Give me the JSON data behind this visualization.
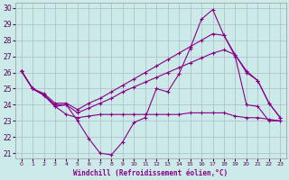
{
  "xlabel": "Windchill (Refroidissement éolien,°C)",
  "xlim": [
    -0.5,
    23.5
  ],
  "ylim": [
    20.7,
    30.3
  ],
  "xticks": [
    0,
    1,
    2,
    3,
    4,
    5,
    6,
    7,
    8,
    9,
    10,
    11,
    12,
    13,
    14,
    15,
    16,
    17,
    18,
    19,
    20,
    21,
    22,
    23
  ],
  "yticks": [
    21,
    22,
    23,
    24,
    25,
    26,
    27,
    28,
    29,
    30
  ],
  "bg_color": "#cceae8",
  "line_color": "#880088",
  "grid_color": "#aabbcc",
  "lines": [
    {
      "x": [
        0,
        1,
        2,
        3,
        4,
        5,
        6,
        7,
        8,
        9,
        10,
        11,
        12,
        13,
        14,
        15,
        16,
        17,
        18,
        19,
        20,
        21,
        22,
        23
      ],
      "y": [
        26.1,
        25.0,
        24.6,
        23.9,
        24.0,
        23.0,
        21.9,
        21.0,
        20.9,
        21.7,
        22.9,
        23.2,
        25.0,
        24.8,
        25.9,
        27.5,
        29.3,
        29.9,
        28.3,
        27.0,
        24.0,
        23.9,
        23.0,
        23.0
      ]
    },
    {
      "x": [
        0,
        1,
        2,
        3,
        4,
        5,
        6,
        7,
        8,
        9,
        10,
        11,
        12,
        13,
        14,
        15,
        16,
        17,
        18,
        19,
        20,
        21,
        22,
        23
      ],
      "y": [
        26.1,
        25.0,
        24.6,
        24.0,
        24.0,
        23.5,
        23.8,
        24.1,
        24.4,
        24.8,
        25.1,
        25.4,
        25.7,
        26.0,
        26.3,
        26.6,
        26.9,
        27.2,
        27.4,
        27.1,
        26.0,
        25.5,
        24.1,
        23.2
      ]
    },
    {
      "x": [
        0,
        1,
        2,
        3,
        4,
        5,
        6,
        7,
        8,
        9,
        10,
        11,
        12,
        13,
        14,
        15,
        16,
        17,
        18,
        19,
        20,
        21,
        22,
        23
      ],
      "y": [
        26.1,
        25.0,
        24.7,
        24.1,
        24.1,
        23.7,
        24.1,
        24.4,
        24.8,
        25.2,
        25.6,
        26.0,
        26.4,
        26.8,
        27.2,
        27.6,
        28.0,
        28.4,
        28.3,
        27.1,
        26.1,
        25.5,
        24.1,
        23.2
      ]
    },
    {
      "x": [
        0,
        1,
        2,
        3,
        4,
        5,
        6,
        7,
        8,
        9,
        10,
        11,
        12,
        13,
        14,
        15,
        16,
        17,
        18,
        19,
        20,
        21,
        22,
        23
      ],
      "y": [
        26.1,
        25.0,
        24.6,
        23.9,
        23.4,
        23.2,
        23.3,
        23.4,
        23.4,
        23.4,
        23.4,
        23.4,
        23.4,
        23.4,
        23.4,
        23.5,
        23.5,
        23.5,
        23.5,
        23.3,
        23.2,
        23.2,
        23.1,
        23.0
      ]
    }
  ]
}
